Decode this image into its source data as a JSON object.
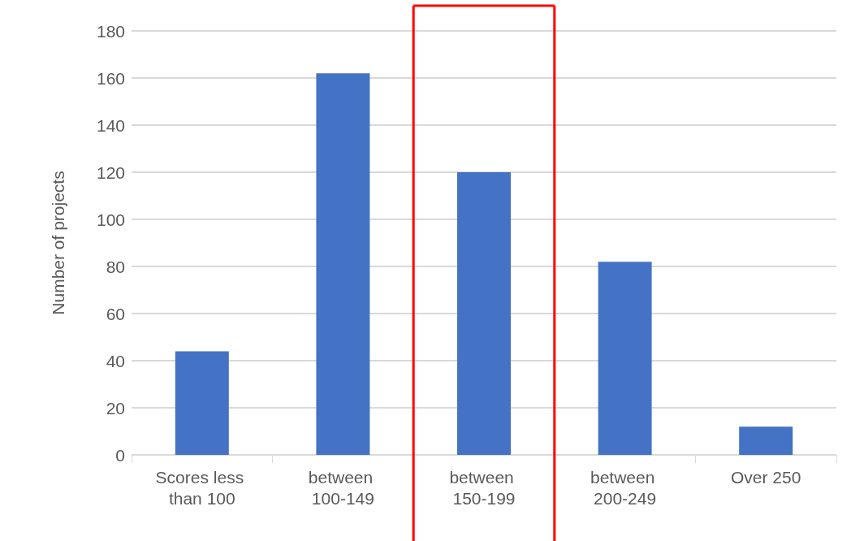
{
  "chart_data": {
    "type": "bar",
    "ylabel": "Number of projects",
    "categories": [
      "Scores less than 100",
      "between 100-149",
      "between 150-199",
      "between 200-249",
      "Over 250"
    ],
    "values": [
      44,
      162,
      120,
      82,
      12
    ],
    "color": "#4472c4",
    "ylim": [
      0,
      180
    ],
    "yticks": [
      0,
      20,
      40,
      60,
      80,
      100,
      120,
      140,
      160,
      180
    ],
    "grid": "y"
  }
}
